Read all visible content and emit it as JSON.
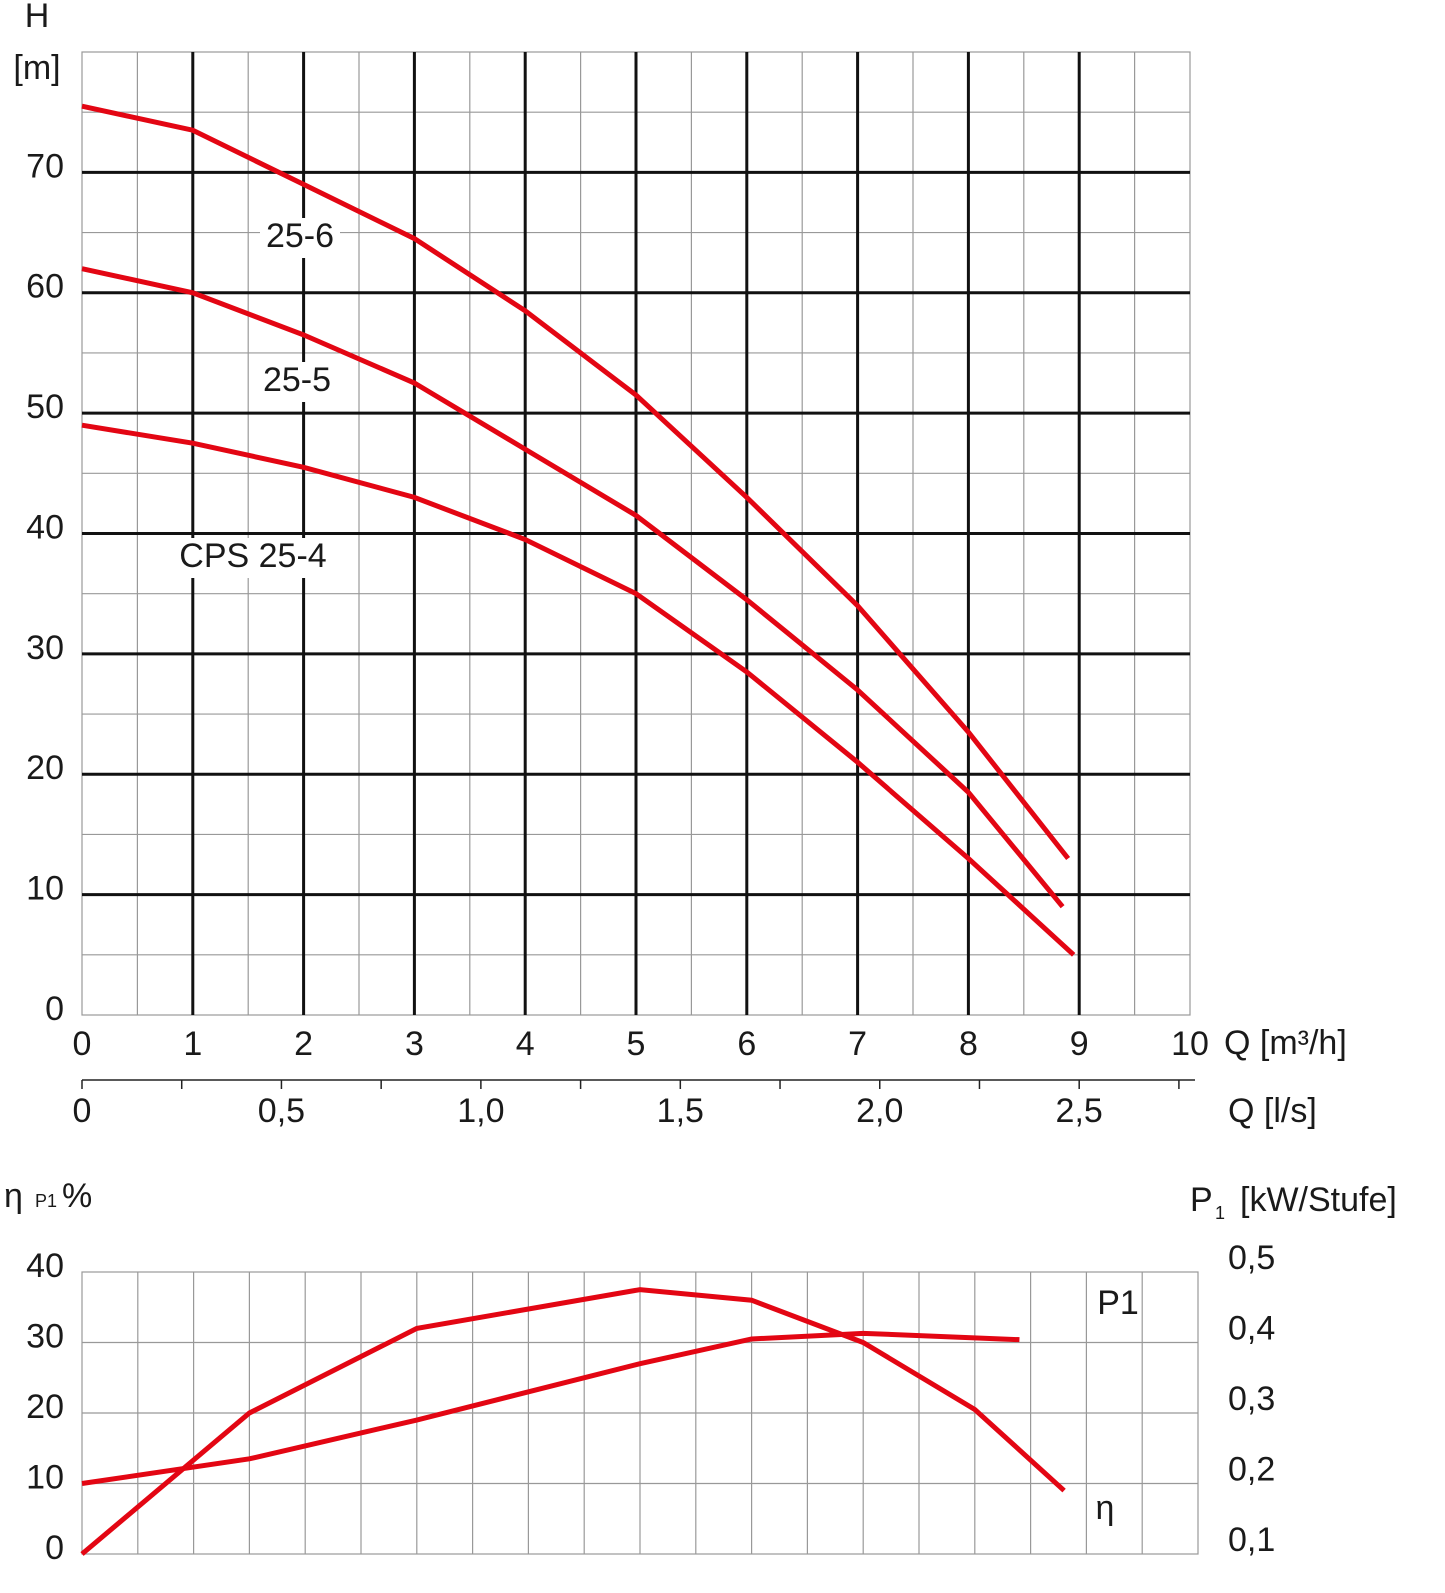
{
  "chart_data": [
    {
      "type": "line",
      "y_label": "H",
      "y_unit": "[m]",
      "x_label": "Q [m³/h]",
      "xlim": [
        0,
        10
      ],
      "xticks": [
        0,
        1,
        2,
        3,
        4,
        5,
        6,
        7,
        8,
        9,
        10
      ],
      "ylim": [
        0,
        80
      ],
      "yticks": [
        0,
        10,
        20,
        30,
        40,
        50,
        60,
        70
      ],
      "x2_label": "Q [l/s]",
      "x2lim": [
        0,
        2.7778
      ],
      "x2ticks": [
        0,
        {
          "value": 0.5,
          "label": "0,5"
        },
        {
          "value": 1.0,
          "label": "1,0"
        },
        {
          "value": 1.5,
          "label": "1,5"
        },
        {
          "value": 2.0,
          "label": "2,0"
        },
        {
          "value": 2.5,
          "label": "2,5"
        }
      ],
      "grid": true,
      "minor_grid": true,
      "series": [
        {
          "name": "25-6",
          "color": "#e30613",
          "x": [
            0,
            1,
            2,
            3,
            4,
            5,
            6,
            7,
            8,
            8.9
          ],
          "values": [
            75.5,
            73.5,
            69,
            64.5,
            58.5,
            51.5,
            43,
            34,
            23.5,
            13
          ]
        },
        {
          "name": "25-5",
          "color": "#e30613",
          "x": [
            0,
            1,
            2,
            3,
            4,
            5,
            6,
            7,
            8,
            8.85
          ],
          "values": [
            62,
            60,
            56.5,
            52.5,
            47,
            41.5,
            34.5,
            27,
            18.5,
            9
          ]
        },
        {
          "name": "CPS 25-4",
          "color": "#e30613",
          "x": [
            0,
            1,
            2,
            3,
            4,
            5,
            6,
            7,
            8,
            8.95
          ],
          "values": [
            49,
            47.5,
            45.5,
            43,
            39.5,
            35,
            28.5,
            21,
            13,
            5
          ]
        }
      ]
    },
    {
      "type": "line",
      "y_label": {
        "symbol": "η",
        "subscript": "P1",
        "unit": "%"
      },
      "y2_label": {
        "symbol": "P",
        "subscript": "1",
        "unit": "[kW/Stufe]"
      },
      "xlim": [
        0,
        10
      ],
      "ylim": [
        0,
        40
      ],
      "yticks": [
        0,
        10,
        20,
        30,
        40
      ],
      "y2lim": [
        0.1,
        0.5
      ],
      "y2ticks": [
        {
          "value": 0.1,
          "label": "0,1"
        },
        {
          "value": 0.2,
          "label": "0,2"
        },
        {
          "value": 0.3,
          "label": "0,3"
        },
        {
          "value": 0.4,
          "label": "0,4"
        },
        {
          "value": 0.5,
          "label": "0,5"
        }
      ],
      "grid": true,
      "series": [
        {
          "name": "P1",
          "axis": "y2",
          "color": "#e30613",
          "x": [
            0,
            1.5,
            3,
            5,
            6,
            7,
            8.4
          ],
          "values": [
            0.2,
            0.235,
            0.29,
            0.37,
            0.405,
            0.413,
            0.404
          ]
        },
        {
          "name": "η",
          "color": "#e30613",
          "x": [
            0,
            1.5,
            3,
            5,
            6,
            7,
            8,
            8.8
          ],
          "values": [
            0,
            20,
            32,
            37.5,
            36,
            30,
            20.5,
            9
          ]
        }
      ]
    }
  ]
}
